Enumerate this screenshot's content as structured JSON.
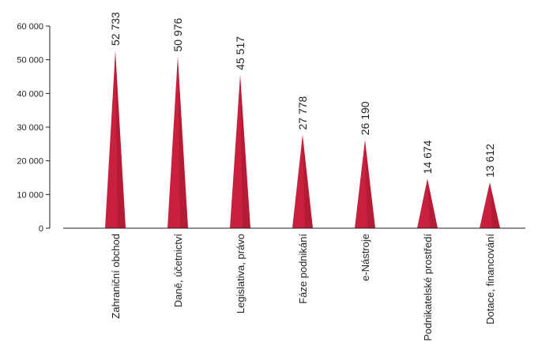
{
  "chart_data": {
    "type": "bar",
    "categories": [
      "Zahraniční obchod",
      "Daně, účetnictví",
      "Legislativa, právo",
      "Fáze podnikání",
      "e-Nástroje",
      "Podnikatelské prostředí",
      "Dotace, financování"
    ],
    "values": [
      52733,
      50976,
      45517,
      27778,
      26190,
      14674,
      13612
    ],
    "value_labels": [
      "52 733",
      "50 976",
      "45 517",
      "27 778",
      "26 190",
      "14 674",
      "13 612"
    ],
    "yticks": [
      0,
      10000,
      20000,
      30000,
      40000,
      50000,
      60000
    ],
    "ytick_labels": [
      "0",
      "10 000",
      "20 000",
      "30 000",
      "40 000",
      "50 000",
      "60 000"
    ],
    "ylim": [
      0,
      60000
    ],
    "title": "",
    "xlabel": "",
    "ylabel": "",
    "grid": false,
    "bar_shape": "triangle",
    "colors": {
      "bar": "#c8203d",
      "bar_shade": "#8e1429",
      "axis": "#231f20"
    }
  }
}
